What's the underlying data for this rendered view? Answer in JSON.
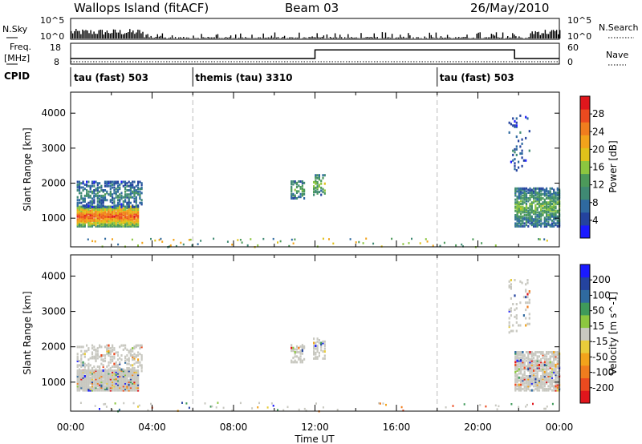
{
  "header": {
    "station": "Wallops Island (fitACF)",
    "beam": "Beam 03",
    "date": "26/May/2010"
  },
  "strip_labels": {
    "nsky": "N.Sky",
    "nsearch": "N.Search",
    "freq": "Freq.",
    "freq_unit": "[MHz]",
    "nave": "Nave",
    "cpid": "CPID",
    "nsky_ticks": [
      "10^5",
      "10^0"
    ],
    "nsearch_ticks": [
      "10^5",
      "10^0"
    ],
    "freq_ticks": [
      "18",
      "8"
    ],
    "nave_ticks": [
      "60",
      "0"
    ]
  },
  "cpid_segments": [
    {
      "label": "tau (fast) 503",
      "start": 0,
      "end": 6
    },
    {
      "label": "themis (tau) 3310",
      "start": 6,
      "end": 18
    },
    {
      "label": "tau (fast) 503",
      "start": 18,
      "end": 24
    }
  ],
  "colors": {
    "power_scale": [
      "#1a1aff",
      "#24439e",
      "#2f6aa0",
      "#3f8a73",
      "#4c9a5a",
      "#8cc63f",
      "#e0c21a",
      "#f2a31b",
      "#f07d1e",
      "#ec4a1f",
      "#e0161c"
    ],
    "velocity_scale": [
      "#e0161c",
      "#ec4a1f",
      "#f07d1e",
      "#f2a31b",
      "#e8cc3a",
      "#c8c8c0",
      "#8cc63f",
      "#3f9a5a",
      "#2f6aa0",
      "#24439e",
      "#1a1aff"
    ],
    "gray": "#c8c8c0"
  },
  "chart_data": [
    {
      "type": "heatmap",
      "quantity": "power",
      "ylabel": "Slant Range [km]",
      "xlim": [
        0,
        24
      ],
      "ylim": [
        180,
        4600
      ],
      "yticks": [
        1000,
        2000,
        3000,
        4000
      ],
      "colorbar": {
        "label": "Power [dB]",
        "ticks": [
          4,
          8,
          12,
          16,
          20,
          24,
          28
        ],
        "range": [
          0,
          32
        ]
      },
      "echo_regions": [
        {
          "t_start": 0.3,
          "t_end": 3.3,
          "range_min": 800,
          "range_max": 1400,
          "value": 24,
          "density": 0.95
        },
        {
          "t_start": 0.3,
          "t_end": 3.5,
          "range_min": 1350,
          "range_max": 2100,
          "value": 8,
          "density": 0.45
        },
        {
          "t_start": 10.8,
          "t_end": 11.5,
          "range_min": 1600,
          "range_max": 2100,
          "value": 12,
          "density": 0.5
        },
        {
          "t_start": 11.9,
          "t_end": 12.5,
          "range_min": 1700,
          "range_max": 2300,
          "value": 14,
          "density": 0.5
        },
        {
          "t_start": 21.8,
          "t_end": 24,
          "range_min": 800,
          "range_max": 1900,
          "value": 12,
          "density": 0.7
        },
        {
          "t_start": 21.5,
          "t_end": 22.5,
          "range_min": 2400,
          "range_max": 4000,
          "value": 6,
          "density": 0.1
        }
      ],
      "ground_band": {
        "range_min": 200,
        "range_max": 450,
        "density": 0.2
      }
    },
    {
      "type": "heatmap",
      "quantity": "velocity",
      "ylabel": "Slant Range [km]",
      "xlabel": "Time UT",
      "xlim": [
        0,
        24
      ],
      "ylim": [
        180,
        4600
      ],
      "yticks": [
        1000,
        2000,
        3000,
        4000
      ],
      "xticks": [
        "00:00",
        "04:00",
        "08:00",
        "12:00",
        "16:00",
        "20:00",
        "00:00"
      ],
      "colorbar": {
        "label": "Velocity [m s^-1]",
        "ticks": [
          "200",
          "100",
          "50",
          "15",
          "-15",
          "-50",
          "-100",
          "-200"
        ]
      },
      "echo_regions": [
        {
          "t_start": 0.3,
          "t_end": 3.3,
          "range_min": 800,
          "range_max": 1400,
          "value": 0,
          "density": 0.95
        },
        {
          "t_start": 0.3,
          "t_end": 3.5,
          "range_min": 1350,
          "range_max": 2100,
          "value": 0,
          "density": 0.3
        },
        {
          "t_start": 10.8,
          "t_end": 11.5,
          "range_min": 1600,
          "range_max": 2100,
          "value": 0,
          "density": 0.5
        },
        {
          "t_start": 11.9,
          "t_end": 12.5,
          "range_min": 1700,
          "range_max": 2300,
          "value": 0,
          "density": 0.5
        },
        {
          "t_start": 21.8,
          "t_end": 24,
          "range_min": 800,
          "range_max": 1900,
          "value": 0,
          "density": 0.7
        },
        {
          "t_start": 21.5,
          "t_end": 22.5,
          "range_min": 2400,
          "range_max": 4000,
          "value": 0,
          "density": 0.1
        }
      ],
      "ground_band": {
        "range_min": 200,
        "range_max": 450,
        "density": 0.2
      }
    }
  ],
  "frequency_trace": [
    {
      "t": 0,
      "mhz": 10.5
    },
    {
      "t": 12,
      "mhz": 10.5
    },
    {
      "t": 12,
      "mhz": 15
    },
    {
      "t": 21.8,
      "mhz": 15
    },
    {
      "t": 21.8,
      "mhz": 10.5
    },
    {
      "t": 24,
      "mhz": 10.5
    }
  ],
  "nave_level": 5
}
